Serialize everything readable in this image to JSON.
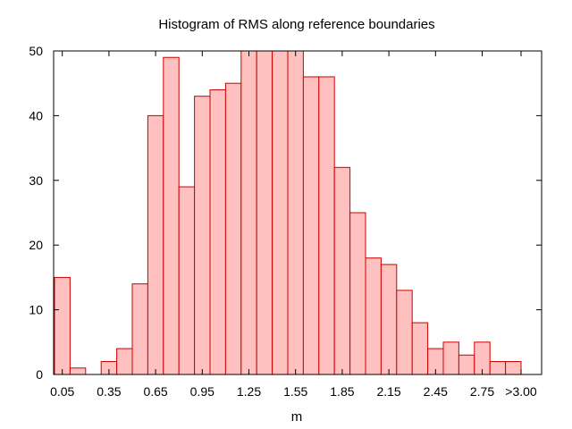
{
  "chart_data": {
    "type": "bar",
    "title": "Histogram of RMS along reference boundaries",
    "xlabel": "m",
    "ylabel": "",
    "ylim": [
      0,
      50
    ],
    "yticks": [
      0,
      10,
      20,
      30,
      40,
      50
    ],
    "xtick_labels": [
      "0.05",
      "0.35",
      "0.65",
      "0.95",
      "1.25",
      "1.55",
      "1.85",
      "2.15",
      "2.45",
      "2.75",
      ">3.00"
    ],
    "xtick_centers": [
      0.05,
      0.35,
      0.65,
      0.95,
      1.25,
      1.55,
      1.85,
      2.15,
      2.45,
      2.75,
      3.0
    ],
    "bin_centers": [
      0.05,
      0.15,
      0.25,
      0.35,
      0.45,
      0.55,
      0.65,
      0.75,
      0.85,
      0.95,
      1.05,
      1.15,
      1.25,
      1.35,
      1.45,
      1.55,
      1.65,
      1.75,
      1.85,
      1.95,
      2.05,
      2.15,
      2.25,
      2.35,
      2.45,
      2.55,
      2.65,
      2.75,
      2.85,
      2.95
    ],
    "values": [
      15,
      1,
      0,
      2,
      4,
      14,
      40,
      49,
      29,
      43,
      44,
      45,
      50,
      50,
      50,
      50,
      46,
      46,
      32,
      25,
      18,
      17,
      13,
      8,
      4,
      5,
      3,
      5,
      2,
      2
    ],
    "bar_color": "#ffc0c0",
    "bar_edge_color": "#cc0000",
    "grid": false,
    "legend": "none"
  }
}
